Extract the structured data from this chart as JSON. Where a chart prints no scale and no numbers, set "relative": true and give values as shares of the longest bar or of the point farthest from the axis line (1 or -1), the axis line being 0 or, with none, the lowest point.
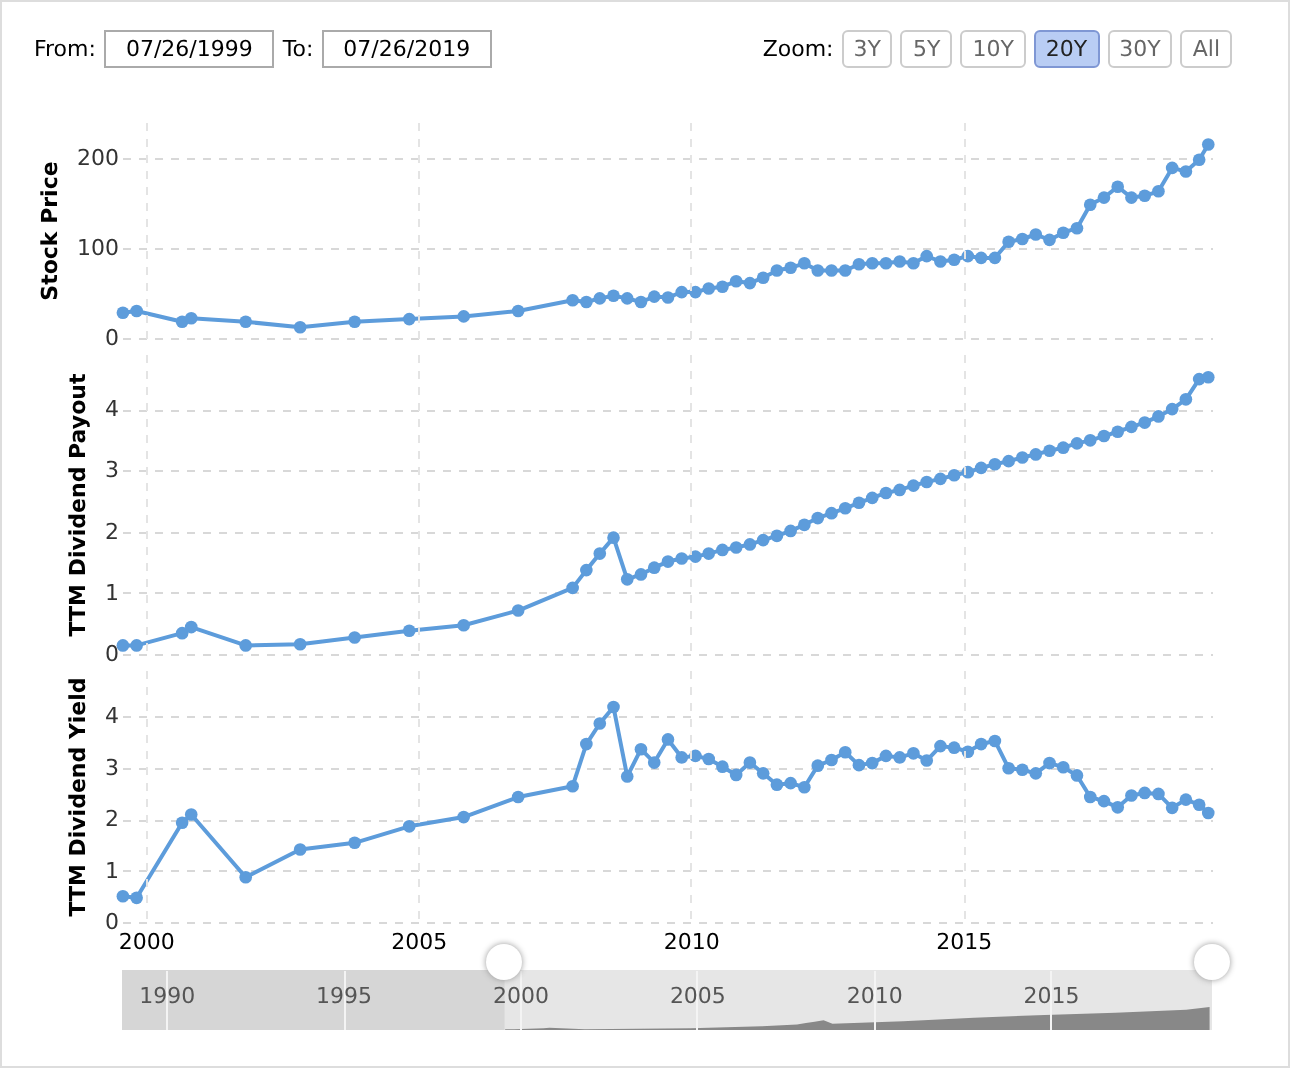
{
  "chart_data": [
    {
      "type": "other",
      "annotations": [
        "From:",
        "07/26/1999",
        "To:",
        "07/26/2019",
        "Zoom:",
        "3Y",
        "5Y",
        "10Y",
        "20Y",
        "30Y",
        "All"
      ]
    },
    {
      "type": "line",
      "ylabel": "Stock Price",
      "xlim": [
        "1999-07-26",
        "2019-07-26"
      ],
      "xticks": [
        "2000",
        "2005",
        "2010",
        "2015"
      ],
      "ylim": [
        0,
        240
      ],
      "yticks": [
        0,
        100,
        200
      ],
      "grid": true,
      "marker": "circle",
      "line_style": "solid",
      "tick_labels": "y",
      "x": [
        "1999-08",
        "1999-11",
        "2000-09",
        "2000-11",
        "2001-11",
        "2002-11",
        "2003-11",
        "2004-11",
        "2005-11",
        "2006-11",
        "2007-11",
        "2008-02",
        "2008-05",
        "2008-08",
        "2008-11",
        "2009-02",
        "2009-05",
        "2009-08",
        "2009-11",
        "2010-02",
        "2010-05",
        "2010-08",
        "2010-11",
        "2011-02",
        "2011-05",
        "2011-08",
        "2011-11",
        "2012-02",
        "2012-05",
        "2012-08",
        "2012-11",
        "2013-02",
        "2013-05",
        "2013-08",
        "2013-11",
        "2014-02",
        "2014-05",
        "2014-08",
        "2014-11",
        "2015-02",
        "2015-05",
        "2015-08",
        "2015-11",
        "2016-02",
        "2016-05",
        "2016-08",
        "2016-11",
        "2017-02",
        "2017-05",
        "2017-08",
        "2017-11",
        "2018-02",
        "2018-05",
        "2018-08",
        "2018-11",
        "2019-02",
        "2019-05",
        "2019-07"
      ],
      "series": [
        {
          "color": "#5d9cdb",
          "values": [
            28,
            30,
            18,
            22,
            18,
            12,
            18,
            21,
            24,
            30,
            42,
            40,
            44,
            47,
            44,
            40,
            46,
            45,
            51,
            51,
            55,
            57,
            63,
            61,
            67,
            75,
            78,
            83,
            75,
            75,
            75,
            82,
            83,
            83,
            85,
            83,
            91,
            85,
            87,
            91,
            89,
            89,
            107,
            110,
            115,
            109,
            117,
            122,
            148,
            156,
            168,
            156,
            158,
            163,
            189,
            185,
            198,
            215
          ]
        }
      ]
    },
    {
      "type": "line",
      "ylabel": "TTM Dividend Payout",
      "xlim": [
        "1999-07-26",
        "2019-07-26"
      ],
      "xticks": [
        "2000",
        "2005",
        "2010",
        "2015"
      ],
      "ylim": [
        0,
        4.9
      ],
      "yticks": [
        0,
        1,
        2,
        3,
        4
      ],
      "grid": true,
      "marker": "circle",
      "line_style": "solid",
      "tick_labels": "y",
      "x": [
        "1999-08",
        "1999-11",
        "2000-09",
        "2000-11",
        "2001-11",
        "2002-11",
        "2003-11",
        "2004-11",
        "2005-11",
        "2006-11",
        "2007-11",
        "2008-02",
        "2008-05",
        "2008-08",
        "2008-11",
        "2009-02",
        "2009-05",
        "2009-08",
        "2009-11",
        "2010-02",
        "2010-05",
        "2010-08",
        "2010-11",
        "2011-02",
        "2011-05",
        "2011-08",
        "2011-11",
        "2012-02",
        "2012-05",
        "2012-08",
        "2012-11",
        "2013-02",
        "2013-05",
        "2013-08",
        "2013-11",
        "2014-02",
        "2014-05",
        "2014-08",
        "2014-11",
        "2015-02",
        "2015-05",
        "2015-08",
        "2015-11",
        "2016-02",
        "2016-05",
        "2016-08",
        "2016-11",
        "2017-02",
        "2017-05",
        "2017-08",
        "2017-11",
        "2018-02",
        "2018-05",
        "2018-08",
        "2018-11",
        "2019-02",
        "2019-05",
        "2019-07"
      ],
      "series": [
        {
          "color": "#5d9cdb",
          "values": [
            0.14,
            0.14,
            0.34,
            0.44,
            0.14,
            0.16,
            0.27,
            0.38,
            0.47,
            0.71,
            1.08,
            1.37,
            1.64,
            1.9,
            1.22,
            1.3,
            1.41,
            1.51,
            1.56,
            1.59,
            1.64,
            1.7,
            1.74,
            1.79,
            1.86,
            1.93,
            2.01,
            2.11,
            2.22,
            2.3,
            2.38,
            2.47,
            2.55,
            2.63,
            2.68,
            2.75,
            2.81,
            2.86,
            2.92,
            2.97,
            3.04,
            3.1,
            3.15,
            3.21,
            3.26,
            3.32,
            3.37,
            3.44,
            3.49,
            3.56,
            3.63,
            3.71,
            3.78,
            3.88,
            4.0,
            4.16,
            4.49,
            4.52
          ]
        }
      ]
    },
    {
      "type": "line",
      "ylabel": "TTM Dividend Yield",
      "xlim": [
        "1999-07-26",
        "2019-07-26"
      ],
      "xticks": [
        "2000",
        "2005",
        "2010",
        "2015"
      ],
      "ylim": [
        0,
        4.9
      ],
      "yticks": [
        0,
        1,
        2,
        3,
        4
      ],
      "grid": true,
      "marker": "circle",
      "line_style": "solid",
      "x": [
        "1999-08",
        "1999-11",
        "2000-09",
        "2000-11",
        "2001-11",
        "2002-11",
        "2003-11",
        "2004-11",
        "2005-11",
        "2006-11",
        "2007-11",
        "2008-02",
        "2008-05",
        "2008-08",
        "2008-11",
        "2009-02",
        "2009-05",
        "2009-08",
        "2009-11",
        "2010-02",
        "2010-05",
        "2010-08",
        "2010-11",
        "2011-02",
        "2011-05",
        "2011-08",
        "2011-11",
        "2012-02",
        "2012-05",
        "2012-08",
        "2012-11",
        "2013-02",
        "2013-05",
        "2013-08",
        "2013-11",
        "2014-02",
        "2014-05",
        "2014-08",
        "2014-11",
        "2015-02",
        "2015-05",
        "2015-08",
        "2015-11",
        "2016-02",
        "2016-05",
        "2016-08",
        "2016-11",
        "2017-02",
        "2017-05",
        "2017-08",
        "2017-11",
        "2018-02",
        "2018-05",
        "2018-08",
        "2018-11",
        "2019-02",
        "2019-05",
        "2019-07"
      ],
      "series": [
        {
          "color": "#5d9cdb",
          "values": [
            0.5,
            0.47,
            1.93,
            2.09,
            0.87,
            1.41,
            1.54,
            1.86,
            2.04,
            2.43,
            2.64,
            3.46,
            3.86,
            4.18,
            2.83,
            3.36,
            3.1,
            3.55,
            3.2,
            3.23,
            3.17,
            3.02,
            2.86,
            3.1,
            2.89,
            2.67,
            2.7,
            2.62,
            3.04,
            3.15,
            3.3,
            3.05,
            3.09,
            3.23,
            3.2,
            3.28,
            3.14,
            3.42,
            3.39,
            3.31,
            3.46,
            3.52,
            2.99,
            2.96,
            2.89,
            3.09,
            3.01,
            2.85,
            2.43,
            2.35,
            2.23,
            2.46,
            2.51,
            2.49,
            2.22,
            2.38,
            2.28,
            2.12
          ]
        }
      ]
    },
    {
      "type": "area",
      "relative": true,
      "xlim": [
        "1988-10-01",
        "2019-07-26"
      ],
      "bands": [
        {
          "axis": "x",
          "from": "1988-10-01",
          "to": "1999-07-26",
          "color": "#d6d6d6"
        }
      ],
      "xticks": [
        "1990",
        "1995",
        "2000",
        "2005",
        "2010",
        "2015"
      ],
      "grid": "x",
      "x": [
        "1999-08",
        "1999-11",
        "2000-09",
        "2000-11",
        "2001-11",
        "2004-11",
        "2006-11",
        "2007-11",
        "2008-02",
        "2008-05",
        "2008-08",
        "2008-11",
        "2010-11",
        "2012-11",
        "2014-11",
        "2016-11",
        "2018-11",
        "2019-07"
      ],
      "series": [
        {
          "color": "#888888",
          "values": [
            0.03,
            0.03,
            0.08,
            0.1,
            0.03,
            0.08,
            0.16,
            0.24,
            0.3,
            0.36,
            0.42,
            0.27,
            0.38,
            0.53,
            0.65,
            0.75,
            0.88,
            1.0
          ]
        }
      ]
    }
  ]
}
